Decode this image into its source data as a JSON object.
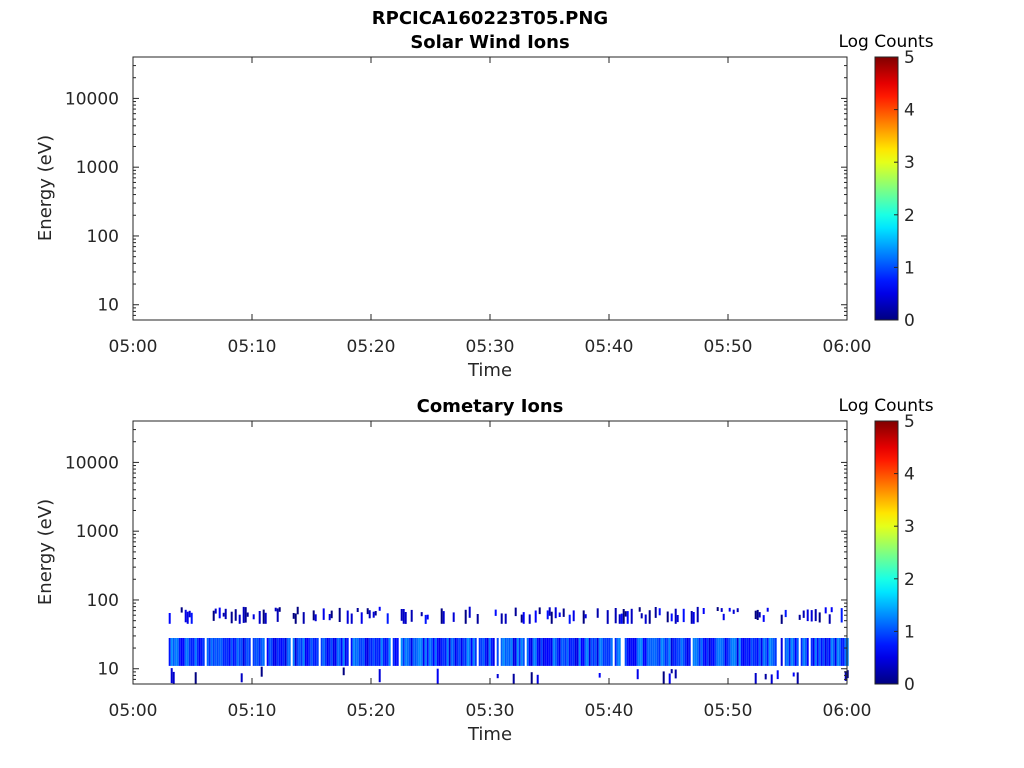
{
  "title": "RPCICA160223T05.PNG",
  "chart_data": [
    {
      "type": "heatmap",
      "title": "Solar Wind Ions",
      "xlabel": "Time",
      "ylabel": "Energy (eV)",
      "xtick_labels": [
        "05:00",
        "05:10",
        "05:20",
        "05:30",
        "05:40",
        "05:50",
        "06:00"
      ],
      "ytick_labels": [
        "10",
        "100",
        "1000",
        "10000"
      ],
      "yscale": "log",
      "ylim": [
        6,
        40000
      ],
      "xlim": [
        "05:00",
        "06:00"
      ],
      "colorbar": {
        "label": "Log Counts",
        "ticks": [
          "0",
          "1",
          "2",
          "3",
          "4",
          "5"
        ],
        "range": [
          0,
          5
        ],
        "colormap": "jet"
      },
      "bands": []
    },
    {
      "type": "heatmap",
      "title": "Cometary Ions",
      "xlabel": "Time",
      "ylabel": "Energy (eV)",
      "xtick_labels": [
        "05:00",
        "05:10",
        "05:20",
        "05:30",
        "05:40",
        "05:50",
        "06:00"
      ],
      "ytick_labels": [
        "10",
        "100",
        "1000",
        "10000"
      ],
      "yscale": "log",
      "ylim": [
        6,
        40000
      ],
      "xlim": [
        "05:00",
        "06:00"
      ],
      "colorbar": {
        "label": "Log Counts",
        "ticks": [
          "0",
          "1",
          "2",
          "3",
          "4",
          "5"
        ],
        "range": [
          0,
          5
        ],
        "colormap": "jet"
      },
      "bands": [
        {
          "time_start": "05:03",
          "time_end": "06:00",
          "energy_low": 11,
          "energy_high": 28,
          "log_counts": 0.9,
          "fill": 0.95
        },
        {
          "time_start": "05:03",
          "time_end": "06:00",
          "energy_low": 45,
          "energy_high": 80,
          "log_counts": 0.3,
          "fill": 0.35
        },
        {
          "time_start": "05:03",
          "time_end": "06:00",
          "energy_low": 6,
          "energy_high": 11,
          "log_counts": 0.2,
          "fill": 0.05
        }
      ]
    }
  ]
}
